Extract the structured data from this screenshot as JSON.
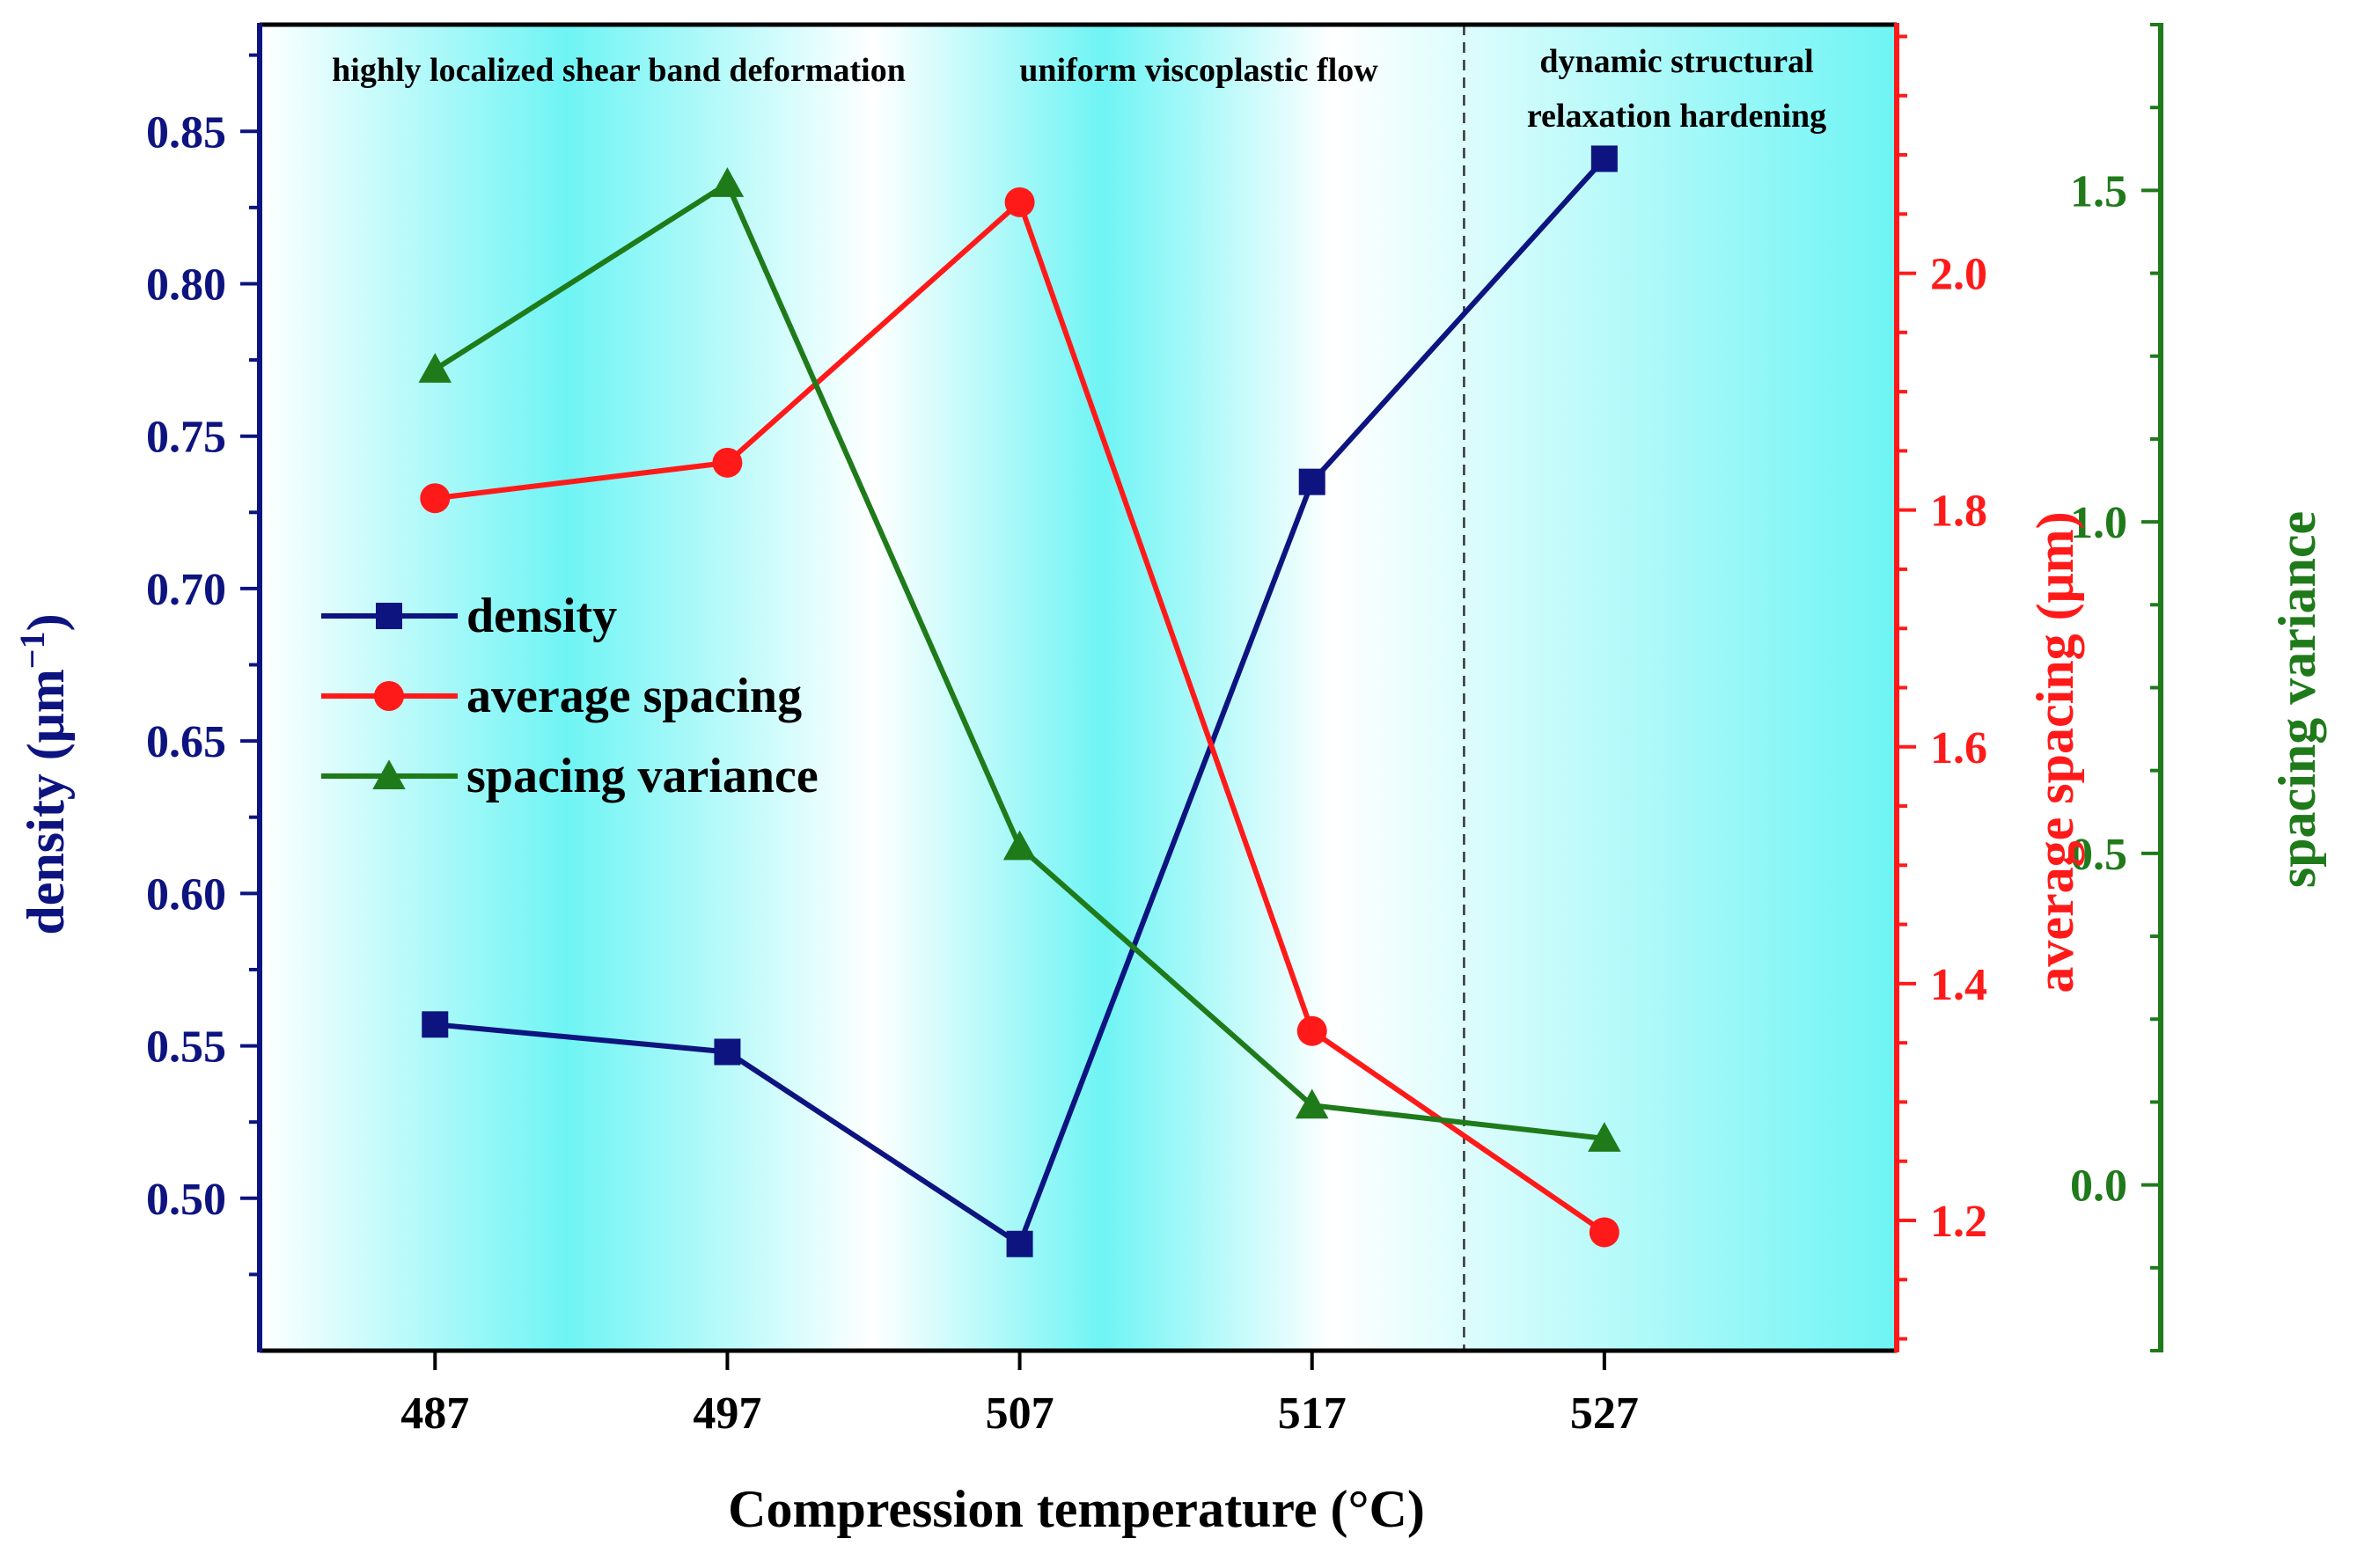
{
  "chart_data": {
    "type": "line",
    "xlabel": "Compression temperature (°C)",
    "categories": [
      "487",
      "497",
      "507",
      "517",
      "527"
    ],
    "x": [
      487,
      497,
      507,
      517,
      527
    ],
    "xlim": [
      481,
      537
    ],
    "axes": {
      "left": {
        "label_main": "density (μm",
        "label_sup": "−1",
        "label_close": ")",
        "ylim": [
          0.45,
          0.885
        ],
        "ticks": [
          0.5,
          0.55,
          0.6,
          0.65,
          0.7,
          0.75,
          0.8,
          0.85
        ],
        "tick_labels": [
          "0.50",
          "0.55",
          "0.60",
          "0.65",
          "0.70",
          "0.75",
          "0.80",
          "0.85"
        ],
        "color": "#0d1480"
      },
      "right1": {
        "label": "average spacing (μm)",
        "ylim": [
          1.09,
          2.21
        ],
        "ticks": [
          1.2,
          1.4,
          1.6,
          1.8,
          2.0
        ],
        "tick_labels": [
          "1.2",
          "1.4",
          "1.6",
          "1.8",
          "2.0"
        ],
        "color": "#ff1a1a"
      },
      "right2": {
        "label": "spacing variance",
        "ylim": [
          -0.25,
          1.75
        ],
        "ticks": [
          0.0,
          0.5,
          1.0,
          1.5
        ],
        "tick_labels": [
          "0.0",
          "0.5",
          "1.0",
          "1.5"
        ],
        "color": "#1f7a1a"
      }
    },
    "series": [
      {
        "name": "density",
        "axis": "left",
        "marker": "square",
        "color": "#0d1480",
        "values": [
          0.557,
          0.548,
          0.485,
          0.735,
          0.841
        ]
      },
      {
        "name": "average spacing",
        "axis": "right1",
        "marker": "circle",
        "color": "#ff1a1a",
        "values": [
          1.81,
          1.84,
          2.06,
          1.36,
          1.19
        ]
      },
      {
        "name": "spacing variance",
        "axis": "right2",
        "marker": "triangle",
        "color": "#1f7a1a",
        "values": [
          1.23,
          1.51,
          0.51,
          0.12,
          0.07
        ]
      }
    ],
    "regions": [
      {
        "label": "highly localized shear band deformation"
      },
      {
        "label": "uniform viscoplastic flow"
      },
      {
        "label_lines": [
          "dynamic structural",
          "relaxation hardening"
        ]
      }
    ],
    "divider_x": 522.2,
    "legend_position": "left-middle"
  }
}
